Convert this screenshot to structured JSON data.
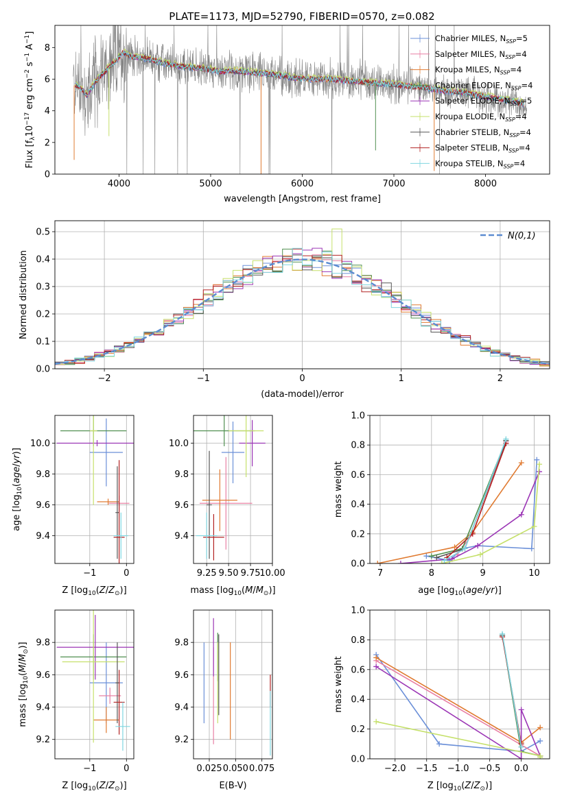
{
  "title": "PLATE=1173, MJD=52790, FIBERID=0570, z=0.082",
  "legend_labels": [
    "Chabrier MILES, N_SSP=5",
    "Salpeter MILES, N_SSP=4",
    "Kroupa MILES, N_SSP=4",
    "Chabrier ELODIE, N_SSP=4",
    "Salpeter ELODIE, N_SSP=5",
    "Kroupa ELODIE, N_SSP=4",
    "Chabrier STELIB, N_SSP=4",
    "Salpeter STELIB, N_SSP=4",
    "Kroupa STELIB, N_SSP=4"
  ],
  "colors": [
    "#6a8fd8",
    "#e87fa3",
    "#e07a30",
    "#4f8f4f",
    "#9b35b5",
    "#c5e06a",
    "#555555",
    "#b22222",
    "#7fd6e0"
  ],
  "chart_data": [
    {
      "id": "spectrum",
      "type": "line",
      "title": "PLATE=1173, MJD=52790, FIBERID=0570, z=0.082",
      "xlabel": "wavelength [Angstrom, rest frame]",
      "ylabel": "Flux [f_λ 10^-17 erg cm^-2 s^-1 A^-1]",
      "xlim": [
        3300,
        8700
      ],
      "ylim": [
        0,
        9.4
      ],
      "xticks": [
        4000,
        5000,
        6000,
        7000,
        8000
      ],
      "yticks": [
        0,
        2,
        4,
        6,
        8
      ],
      "grid": false,
      "legend": "top-right",
      "model_continuum": {
        "x": [
          3550,
          3650,
          3750,
          3850,
          3950,
          4050,
          4150,
          4300,
          4500,
          4700,
          4900,
          5100,
          5300,
          5500,
          5700,
          5900,
          6100,
          6300,
          6500,
          6700,
          6900,
          7100,
          7300,
          7500,
          7700,
          7900,
          8100,
          8300,
          8450
        ],
        "y": [
          5.6,
          5.0,
          5.9,
          6.5,
          7.1,
          7.7,
          7.4,
          7.3,
          7.0,
          6.8,
          6.7,
          6.5,
          6.5,
          6.4,
          6.3,
          6.1,
          6.0,
          6.0,
          5.9,
          5.8,
          5.7,
          5.6,
          5.5,
          5.3,
          5.2,
          5.0,
          4.8,
          4.6,
          4.4
        ]
      }
    },
    {
      "id": "residuals",
      "type": "histogram",
      "xlabel": "(data-model)/error",
      "ylabel": "Normed distribution",
      "xlim": [
        -2.5,
        2.5
      ],
      "ylim": [
        0,
        0.54
      ],
      "xticks": [
        -2,
        -1,
        0,
        1,
        2
      ],
      "yticks": [
        0.0,
        0.1,
        0.2,
        0.3,
        0.4,
        0.5
      ],
      "grid": true,
      "legend": "top-right",
      "reference_label": "N(0,1)",
      "reference_color": "#5b8bd0",
      "bins": 50,
      "base_curve": "normal",
      "peak_bin_value": 0.51
    },
    {
      "id": "age-vs-Z",
      "type": "scatter",
      "xlabel": "Z [log10(Z/Z⊙)]",
      "ylabel": "age [log10(age/yr)]",
      "xlim": [
        -1.95,
        0.2
      ],
      "ylim": [
        9.22,
        10.18
      ],
      "xticks": [
        -1,
        0
      ],
      "yticks": [
        9.4,
        9.6,
        9.8,
        10.0
      ],
      "grid": true,
      "points": [
        {
          "x": -0.55,
          "y": 9.94,
          "xerr": 0.45,
          "yerr": 0.22,
          "c": 0
        },
        {
          "x": -0.2,
          "y": 9.61,
          "xerr": 0.28,
          "yerr": 0.05,
          "c": 1
        },
        {
          "x": -0.5,
          "y": 9.62,
          "xerr": 0.3,
          "yerr": 0.02,
          "c": 2
        },
        {
          "x": -0.9,
          "y": 10.08,
          "xerr": 0.9,
          "yerr": 0.1,
          "c": 3
        },
        {
          "x": -0.8,
          "y": 10.0,
          "xerr": 1.1,
          "yerr": 0.02,
          "c": 4
        },
        {
          "x": -0.9,
          "y": 10.08,
          "xerr": 0.1,
          "yerr": 0.48,
          "c": 5
        },
        {
          "x": -0.25,
          "y": 9.55,
          "xerr": 0.05,
          "yerr": 0.3,
          "c": 6
        },
        {
          "x": -0.2,
          "y": 9.39,
          "xerr": 0.15,
          "yerr": 0.5,
          "c": 7
        },
        {
          "x": -0.15,
          "y": 9.4,
          "xerr": 0.2,
          "yerr": 0.15,
          "c": 8
        }
      ]
    },
    {
      "id": "age-vs-mass",
      "type": "scatter",
      "xlabel": "mass [log10(M/M⊙)]",
      "ylabel": "",
      "xlim": [
        9.1,
        10.0
      ],
      "ylim": [
        9.22,
        10.18
      ],
      "xticks": [
        9.25,
        9.5,
        9.75,
        10.0
      ],
      "xtick_labels": [
        "9.25",
        "9.50",
        "9.75",
        "10.00"
      ],
      "yticks": [
        9.4,
        9.6,
        9.8,
        10.0
      ],
      "grid": true,
      "points": [
        {
          "x": 9.55,
          "y": 9.94,
          "xerr": 0.13,
          "yerr": 0.2,
          "c": 0
        },
        {
          "x": 9.47,
          "y": 9.61,
          "xerr": 0.3,
          "yerr": 0.3,
          "c": 1
        },
        {
          "x": 9.4,
          "y": 9.63,
          "xerr": 0.2,
          "yerr": 0.2,
          "c": 2
        },
        {
          "x": 9.45,
          "y": 10.08,
          "xerr": 0.35,
          "yerr": 0.1,
          "c": 3
        },
        {
          "x": 9.77,
          "y": 10.0,
          "xerr": 0.15,
          "yerr": 0.15,
          "c": 4
        },
        {
          "x": 9.7,
          "y": 10.08,
          "xerr": 0.2,
          "yerr": 0.3,
          "c": 5
        },
        {
          "x": 9.28,
          "y": 9.6,
          "xerr": 0.03,
          "yerr": 0.35,
          "c": 6
        },
        {
          "x": 9.33,
          "y": 9.39,
          "xerr": 0.12,
          "yerr": 0.15,
          "c": 7
        },
        {
          "x": 9.25,
          "y": 9.4,
          "xerr": 0.12,
          "yerr": 0.15,
          "c": 8
        }
      ]
    },
    {
      "id": "mass-weight-vs-age",
      "type": "line",
      "xlabel": "age [log10(age/yr)]",
      "ylabel": "mass weight",
      "xlim": [
        6.8,
        10.3
      ],
      "ylim": [
        0,
        1.0
      ],
      "xticks": [
        7,
        8,
        9,
        10
      ],
      "yticks": [
        0.0,
        0.2,
        0.4,
        0.6,
        0.8,
        1.0
      ],
      "grid": true,
      "series": [
        {
          "c": 0,
          "x": [
            7.9,
            8.35,
            8.6,
            8.9,
            9.95,
            10.05
          ],
          "y": [
            0.05,
            0.02,
            0.1,
            0.12,
            0.1,
            0.7
          ]
        },
        {
          "c": 1,
          "x": [
            8.5,
            8.8,
            9.45
          ],
          "y": [
            0.06,
            0.2,
            0.82
          ]
        },
        {
          "c": 2,
          "x": [
            6.95,
            8.45,
            8.8,
            9.75
          ],
          "y": [
            0.0,
            0.11,
            0.21,
            0.68
          ]
        },
        {
          "c": 3,
          "x": [
            8.0,
            8.6,
            9.45
          ],
          "y": [
            0.05,
            0.1,
            0.83
          ]
        },
        {
          "c": 4,
          "x": [
            7.4,
            8.4,
            8.9,
            9.75,
            10.1
          ],
          "y": [
            0.0,
            0.03,
            0.12,
            0.33,
            0.62
          ]
        },
        {
          "c": 5,
          "x": [
            8.2,
            8.95,
            10.0,
            10.1
          ],
          "y": [
            0.0,
            0.06,
            0.25,
            0.67
          ]
        },
        {
          "c": 6,
          "x": [
            8.1,
            8.65,
            9.45
          ],
          "y": [
            0.04,
            0.1,
            0.83
          ]
        },
        {
          "c": 7,
          "x": [
            8.3,
            8.8,
            9.45
          ],
          "y": [
            0.04,
            0.2,
            0.81
          ]
        },
        {
          "c": 8,
          "x": [
            8.25,
            8.65,
            9.45
          ],
          "y": [
            0.02,
            0.1,
            0.84
          ]
        }
      ]
    },
    {
      "id": "mass-vs-Z",
      "type": "scatter",
      "xlabel": "Z [log10(Z/Z⊙)]",
      "ylabel": "mass [log10(M/M⊙)]",
      "xlim": [
        -1.95,
        0.2
      ],
      "ylim": [
        9.08,
        10.0
      ],
      "xticks": [
        -1,
        0
      ],
      "yticks": [
        9.2,
        9.4,
        9.6,
        9.8
      ],
      "grid": true,
      "points": [
        {
          "x": -0.55,
          "y": 9.55,
          "xerr": 0.45,
          "yerr": 0.25,
          "c": 0
        },
        {
          "x": -0.45,
          "y": 9.47,
          "xerr": 0.3,
          "yerr": 0.05,
          "c": 1
        },
        {
          "x": -0.55,
          "y": 9.32,
          "xerr": 0.35,
          "yerr": 0.08,
          "c": 2
        },
        {
          "x": -0.9,
          "y": 9.71,
          "xerr": 0.9,
          "yerr": 0.14,
          "c": 3
        },
        {
          "x": -0.85,
          "y": 9.77,
          "xerr": 1.05,
          "yerr": 0.2,
          "c": 4
        },
        {
          "x": -0.9,
          "y": 9.68,
          "xerr": 0.85,
          "yerr": 0.5,
          "c": 5
        },
        {
          "x": -0.25,
          "y": 9.55,
          "xerr": 0.05,
          "yerr": 0.25,
          "c": 6
        },
        {
          "x": -0.2,
          "y": 9.43,
          "xerr": 0.15,
          "yerr": 0.2,
          "c": 7
        },
        {
          "x": -0.1,
          "y": 9.28,
          "xerr": 0.2,
          "yerr": 0.15,
          "c": 8
        }
      ]
    },
    {
      "id": "mass-vs-EBV",
      "type": "scatter",
      "xlabel": "E(B-V)",
      "ylabel": "",
      "xlim": [
        0.01,
        0.085
      ],
      "ylim": [
        9.08,
        10.0
      ],
      "xticks": [
        0.025,
        0.05,
        0.075
      ],
      "xtick_labels": [
        "0.025",
        "0.050",
        "0.075"
      ],
      "yticks": [
        9.2,
        9.4,
        9.6,
        9.8
      ],
      "grid": true,
      "points": [
        {
          "x": 0.02,
          "y": 9.55,
          "xerr": 0,
          "yerr": 0.25,
          "c": 0
        },
        {
          "x": 0.029,
          "y": 9.47,
          "xerr": 0,
          "yerr": 0.3,
          "c": 1
        },
        {
          "x": 0.045,
          "y": 9.5,
          "xerr": 0,
          "yerr": 0.3,
          "c": 2
        },
        {
          "x": 0.033,
          "y": 9.71,
          "xerr": 0,
          "yerr": 0.15,
          "c": 3
        },
        {
          "x": 0.029,
          "y": 9.77,
          "xerr": 0,
          "yerr": 0.18,
          "c": 4
        },
        {
          "x": 0.033,
          "y": 9.55,
          "xerr": 0,
          "yerr": 0.25,
          "c": 5
        },
        {
          "x": 0.034,
          "y": 9.6,
          "xerr": 0,
          "yerr": 0.25,
          "c": 6
        },
        {
          "x": 0.083,
          "y": 9.5,
          "xerr": 0,
          "yerr": 0.1,
          "c": 7
        },
        {
          "x": 0.083,
          "y": 9.3,
          "xerr": 0,
          "yerr": 0.2,
          "c": 8
        }
      ]
    },
    {
      "id": "mass-weight-vs-Z",
      "type": "line",
      "xlabel": "Z [log10(Z/Z⊙)]",
      "ylabel": "mass weight",
      "xlim": [
        -2.4,
        0.45
      ],
      "ylim": [
        0,
        1.0
      ],
      "xticks": [
        -2.0,
        -1.5,
        -1.0,
        -0.5,
        0.0
      ],
      "xtick_labels": [
        "−2.0",
        "−1.5",
        "−1.0",
        "−0.5",
        "0.0"
      ],
      "yticks": [
        0.0,
        0.2,
        0.4,
        0.6,
        0.8,
        1.0
      ],
      "grid": true,
      "series": [
        {
          "c": 0,
          "x": [
            -2.3,
            -1.3,
            0.0,
            0.3
          ],
          "y": [
            0.7,
            0.1,
            0.05,
            0.12
          ]
        },
        {
          "c": 1,
          "x": [
            -2.3,
            0.3
          ],
          "y": [
            0.66,
            0.02
          ]
        },
        {
          "c": 2,
          "x": [
            -2.3,
            0.0,
            0.3
          ],
          "y": [
            0.68,
            0.11,
            0.21
          ]
        },
        {
          "c": 3,
          "x": [
            -0.3,
            0.0,
            0.3
          ],
          "y": [
            0.83,
            0.05,
            0.02
          ]
        },
        {
          "c": 4,
          "x": [
            -2.3,
            0.0,
            0.0,
            0.3
          ],
          "y": [
            0.62,
            0.0,
            0.33,
            0.02
          ]
        },
        {
          "c": 5,
          "x": [
            -2.3,
            0.3,
            0.3
          ],
          "y": [
            0.25,
            0.02,
            0.01
          ]
        },
        {
          "c": 6,
          "x": [
            -0.3,
            0.0
          ],
          "y": [
            0.83,
            0.08
          ]
        },
        {
          "c": 7,
          "x": [
            -0.3,
            0.0
          ],
          "y": [
            0.82,
            0.1
          ]
        },
        {
          "c": 8,
          "x": [
            -0.3,
            0.0
          ],
          "y": [
            0.84,
            0.08
          ]
        }
      ]
    }
  ]
}
